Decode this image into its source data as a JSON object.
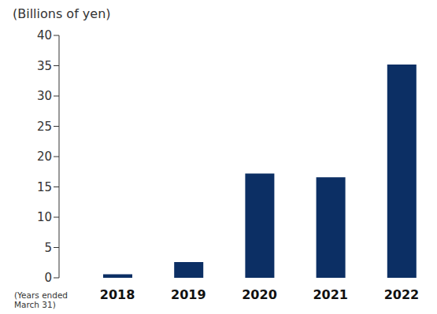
{
  "chart_data": {
    "type": "bar",
    "y_label": "(Billions of yen)",
    "x_label": "(Years ended March 31)",
    "categories": [
      "2018",
      "2019",
      "2020",
      "2021",
      "2022"
    ],
    "values": [
      0.6,
      2.6,
      17.2,
      16.6,
      35.2
    ],
    "color": "#0c2f64",
    "ylim": [
      0,
      40
    ],
    "yticks": [
      0,
      5,
      10,
      15,
      20,
      25,
      30,
      35,
      40
    ],
    "grid": false
  }
}
